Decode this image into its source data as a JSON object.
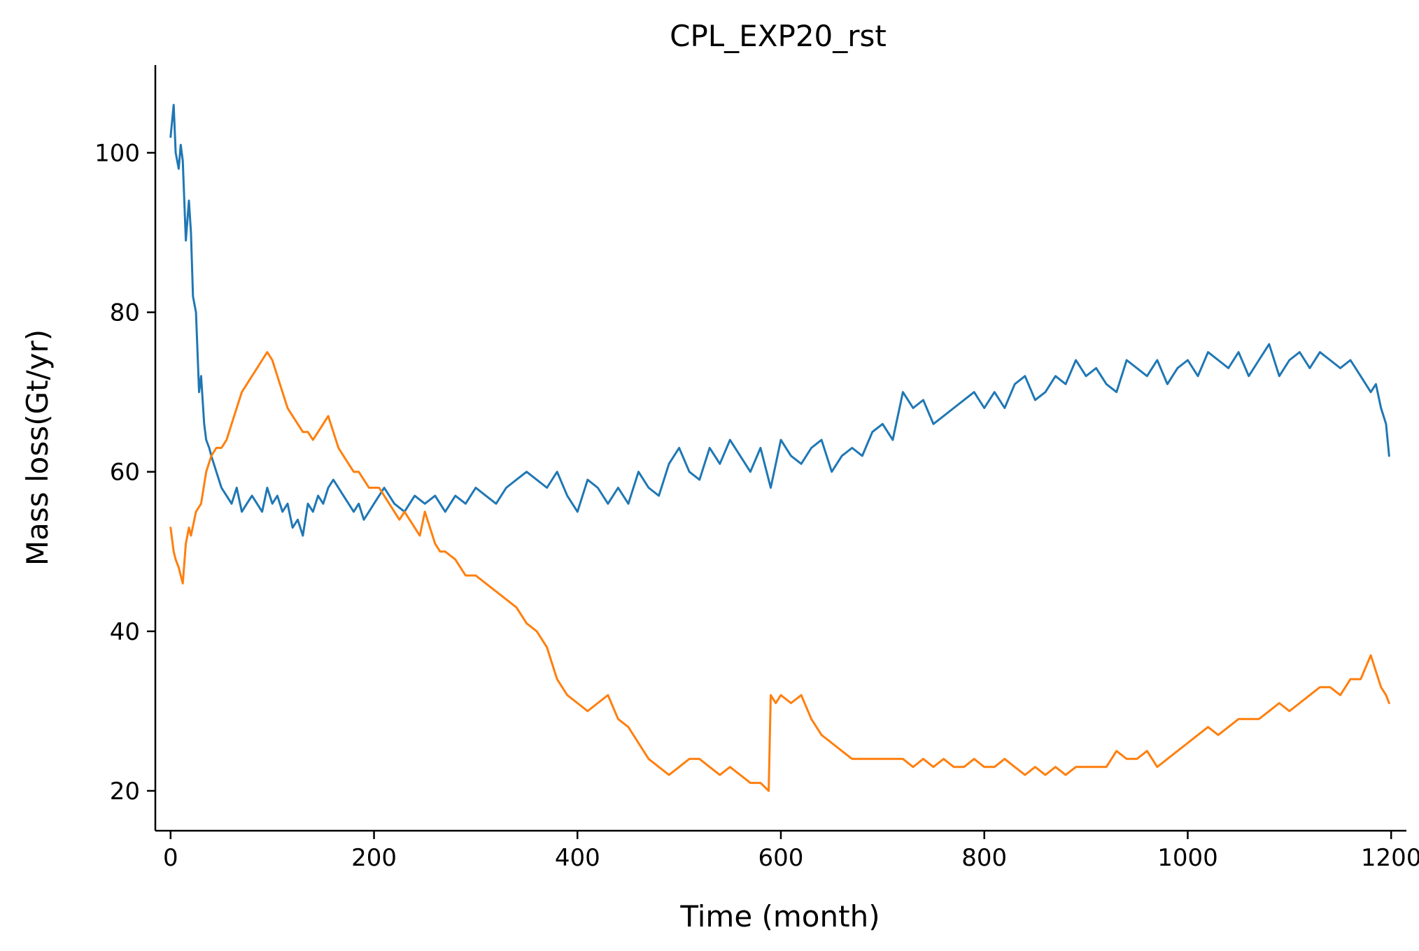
{
  "chart_data": {
    "type": "line",
    "title": "CPL_EXP20_rst",
    "xlabel": "Time (month)",
    "ylabel": "Mass loss(Gt/yr)",
    "xlim": [
      -15,
      1215
    ],
    "ylim": [
      15,
      111
    ],
    "xticks": [
      0,
      200,
      400,
      600,
      800,
      1000,
      1200
    ],
    "yticks": [
      20,
      40,
      60,
      80,
      100
    ],
    "grid": false,
    "series": [
      {
        "color": "#1f77b4",
        "x": [
          0,
          3,
          5,
          8,
          10,
          12,
          15,
          18,
          20,
          22,
          25,
          28,
          30,
          33,
          35,
          38,
          40,
          45,
          50,
          55,
          60,
          65,
          70,
          75,
          80,
          85,
          90,
          95,
          100,
          105,
          110,
          115,
          120,
          125,
          130,
          135,
          140,
          145,
          150,
          155,
          160,
          165,
          170,
          175,
          180,
          185,
          190,
          195,
          200,
          205,
          210,
          220,
          230,
          240,
          250,
          260,
          270,
          280,
          290,
          300,
          310,
          320,
          330,
          340,
          350,
          360,
          370,
          380,
          390,
          400,
          410,
          420,
          430,
          440,
          450,
          460,
          470,
          480,
          490,
          500,
          510,
          520,
          530,
          540,
          550,
          560,
          570,
          580,
          590,
          600,
          610,
          620,
          630,
          640,
          650,
          660,
          670,
          680,
          690,
          700,
          710,
          720,
          730,
          740,
          750,
          760,
          770,
          780,
          790,
          800,
          810,
          820,
          830,
          840,
          850,
          860,
          870,
          880,
          890,
          900,
          910,
          920,
          930,
          940,
          950,
          960,
          970,
          980,
          990,
          1000,
          1010,
          1020,
          1030,
          1040,
          1050,
          1060,
          1070,
          1080,
          1090,
          1100,
          1110,
          1120,
          1130,
          1140,
          1150,
          1160,
          1170,
          1180,
          1185,
          1190,
          1195,
          1198
        ],
        "y": [
          102,
          106,
          100,
          98,
          101,
          99,
          89,
          94,
          90,
          82,
          80,
          70,
          72,
          66,
          64,
          63,
          62,
          60,
          58,
          57,
          56,
          58,
          55,
          56,
          57,
          56,
          55,
          58,
          56,
          57,
          55,
          56,
          53,
          54,
          52,
          56,
          55,
          57,
          56,
          58,
          59,
          58,
          57,
          56,
          55,
          56,
          54,
          55,
          56,
          57,
          58,
          56,
          55,
          57,
          56,
          57,
          55,
          57,
          56,
          58,
          57,
          56,
          58,
          59,
          60,
          59,
          58,
          60,
          57,
          55,
          59,
          58,
          56,
          58,
          56,
          60,
          58,
          57,
          61,
          63,
          60,
          59,
          63,
          61,
          64,
          62,
          60,
          63,
          58,
          64,
          62,
          61,
          63,
          64,
          60,
          62,
          63,
          62,
          65,
          66,
          64,
          70,
          68,
          69,
          66,
          67,
          68,
          69,
          70,
          68,
          70,
          68,
          71,
          72,
          69,
          70,
          72,
          71,
          74,
          72,
          73,
          71,
          70,
          74,
          73,
          72,
          74,
          71,
          73,
          74,
          72,
          75,
          74,
          73,
          75,
          72,
          74,
          76,
          72,
          74,
          75,
          73,
          75,
          74,
          73,
          74,
          72,
          70,
          71,
          68,
          66,
          62
        ],
        "name": ""
      },
      {
        "color": "#ff7f0e",
        "x": [
          0,
          3,
          5,
          8,
          10,
          12,
          15,
          18,
          20,
          25,
          30,
          35,
          40,
          45,
          50,
          55,
          60,
          65,
          70,
          75,
          80,
          85,
          90,
          95,
          100,
          105,
          110,
          115,
          120,
          125,
          130,
          135,
          140,
          145,
          150,
          155,
          160,
          165,
          170,
          175,
          180,
          185,
          190,
          195,
          200,
          205,
          210,
          215,
          220,
          225,
          230,
          235,
          240,
          245,
          250,
          255,
          260,
          265,
          270,
          280,
          290,
          300,
          310,
          320,
          330,
          340,
          350,
          360,
          370,
          375,
          380,
          390,
          400,
          410,
          420,
          430,
          440,
          450,
          460,
          470,
          480,
          490,
          500,
          510,
          520,
          530,
          540,
          550,
          560,
          570,
          580,
          588,
          590,
          595,
          600,
          610,
          620,
          630,
          640,
          650,
          660,
          670,
          680,
          690,
          700,
          710,
          720,
          730,
          740,
          750,
          760,
          770,
          780,
          790,
          800,
          810,
          820,
          830,
          840,
          850,
          860,
          870,
          880,
          890,
          900,
          910,
          920,
          930,
          940,
          950,
          960,
          970,
          980,
          990,
          1000,
          1010,
          1020,
          1030,
          1040,
          1050,
          1060,
          1070,
          1080,
          1090,
          1100,
          1110,
          1120,
          1130,
          1140,
          1150,
          1160,
          1170,
          1180,
          1185,
          1190,
          1195,
          1198
        ],
        "y": [
          53,
          50,
          49,
          48,
          47,
          46,
          51,
          53,
          52,
          55,
          56,
          60,
          62,
          63,
          63,
          64,
          66,
          68,
          70,
          71,
          72,
          73,
          74,
          75,
          74,
          72,
          70,
          68,
          67,
          66,
          65,
          65,
          64,
          65,
          66,
          67,
          65,
          63,
          62,
          61,
          60,
          60,
          59,
          58,
          58,
          58,
          57,
          56,
          55,
          54,
          55,
          54,
          53,
          52,
          55,
          53,
          51,
          50,
          50,
          49,
          47,
          47,
          46,
          45,
          44,
          43,
          41,
          40,
          38,
          36,
          34,
          32,
          31,
          30,
          31,
          32,
          29,
          28,
          26,
          24,
          23,
          22,
          23,
          24,
          24,
          23,
          22,
          23,
          22,
          21,
          21,
          20,
          32,
          31,
          32,
          31,
          32,
          29,
          27,
          26,
          25,
          24,
          24,
          24,
          24,
          24,
          24,
          23,
          24,
          23,
          24,
          23,
          23,
          24,
          23,
          23,
          24,
          23,
          22,
          23,
          22,
          23,
          22,
          23,
          23,
          23,
          23,
          25,
          24,
          24,
          25,
          23,
          24,
          25,
          26,
          27,
          28,
          27,
          28,
          29,
          29,
          29,
          30,
          31,
          30,
          31,
          32,
          33,
          33,
          32,
          34,
          34,
          37,
          35,
          33,
          32,
          31
        ],
        "name": ""
      }
    ]
  }
}
